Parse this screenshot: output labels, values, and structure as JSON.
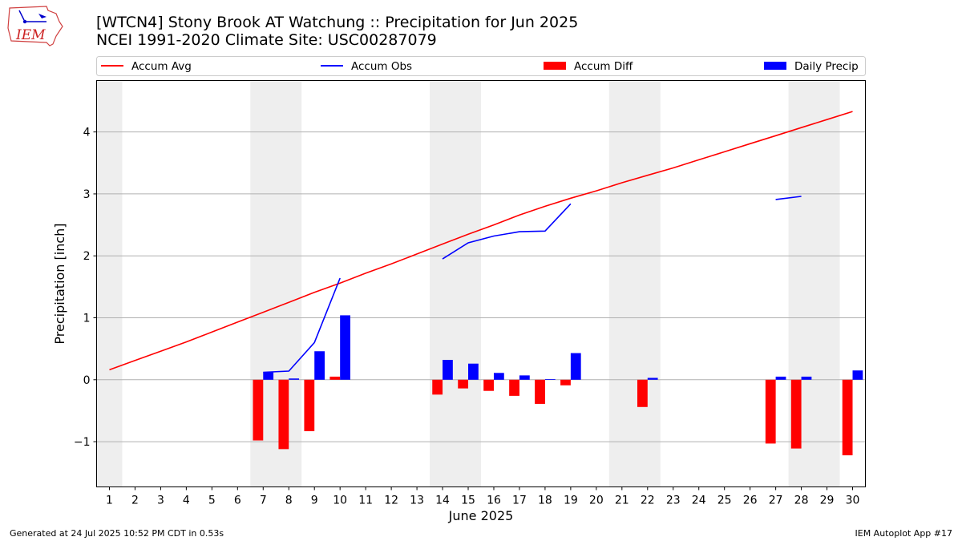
{
  "header": {
    "title_line1": "[WTCN4] Stony Brook  AT Watchung :: Precipitation for Jun 2025",
    "title_line2": "NCEI 1991-2020 Climate Site: USC00287079",
    "logo_text": "IEM"
  },
  "footer": {
    "left": "Generated at 24 Jul 2025 10:52 PM CDT in 0.53s",
    "right": "IEM Autoplot App #17"
  },
  "colors": {
    "accum_avg": "#ff0000",
    "accum_obs": "#0000ff",
    "accum_diff": "#ff0000",
    "daily_precip": "#0000ff",
    "weekend_shade": "#eeeeee",
    "grid": "#b0b0b0"
  },
  "chart_data": {
    "type": "bar+line",
    "xlabel": "June 2025",
    "ylabel": "Precipitation [inch]",
    "xlim": [
      0.5,
      30.5
    ],
    "ylim": [
      -1.73,
      4.83
    ],
    "yticks": [
      -1,
      0,
      1,
      2,
      3,
      4
    ],
    "ytick_labels": [
      "−1",
      "0",
      "1",
      "2",
      "3",
      "4"
    ],
    "xticks": [
      1,
      2,
      3,
      4,
      5,
      6,
      7,
      8,
      9,
      10,
      11,
      12,
      13,
      14,
      15,
      16,
      17,
      18,
      19,
      20,
      21,
      22,
      23,
      24,
      25,
      26,
      27,
      28,
      29,
      30
    ],
    "grid": "horizontal",
    "weekend_shade_ranges": [
      [
        0.5,
        1.5
      ],
      [
        6.5,
        8.5
      ],
      [
        13.5,
        15.5
      ],
      [
        20.5,
        22.5
      ],
      [
        27.5,
        29.5
      ]
    ],
    "legend": {
      "placement": "top",
      "entries": [
        {
          "label": "Accum Avg",
          "kind": "line",
          "color": "#ff0000"
        },
        {
          "label": "Accum Obs",
          "kind": "line",
          "color": "#0000ff"
        },
        {
          "label": "Accum Diff",
          "kind": "bar",
          "color": "#ff0000"
        },
        {
          "label": "Daily Precip",
          "kind": "bar",
          "color": "#0000ff"
        }
      ]
    },
    "series": [
      {
        "name": "Accum Avg",
        "type": "line",
        "color": "#ff0000",
        "x": [
          1,
          2,
          3,
          4,
          5,
          6,
          7,
          8,
          9,
          10,
          11,
          12,
          13,
          14,
          15,
          16,
          17,
          18,
          19,
          20,
          21,
          22,
          23,
          24,
          25,
          26,
          27,
          28,
          29,
          30
        ],
        "values": [
          0.16,
          0.31,
          0.46,
          0.61,
          0.77,
          0.93,
          1.09,
          1.25,
          1.41,
          1.56,
          1.72,
          1.87,
          2.03,
          2.19,
          2.35,
          2.5,
          2.66,
          2.8,
          2.93,
          3.05,
          3.18,
          3.3,
          3.42,
          3.55,
          3.68,
          3.81,
          3.94,
          4.07,
          4.2,
          4.33
        ]
      },
      {
        "name": "Accum Obs",
        "type": "line",
        "color": "#0000ff",
        "segments": [
          {
            "x": [
              7,
              8,
              9,
              10
            ],
            "values": [
              0.12,
              0.14,
              0.6,
              1.64
            ]
          },
          {
            "x": [
              14,
              15,
              16,
              17,
              18,
              19
            ],
            "values": [
              1.95,
              2.21,
              2.32,
              2.39,
              2.4,
              2.84
            ]
          },
          {
            "x": [
              27,
              28
            ],
            "values": [
              2.91,
              2.96
            ]
          }
        ]
      },
      {
        "name": "Accum Diff",
        "type": "bar",
        "color": "#ff0000",
        "x": [
          7,
          8,
          9,
          10,
          14,
          15,
          16,
          17,
          18,
          19,
          22,
          27,
          28,
          30
        ],
        "values": [
          -0.98,
          -1.12,
          -0.83,
          0.05,
          -0.24,
          -0.14,
          -0.18,
          -0.26,
          -0.39,
          -0.09,
          -0.44,
          -1.03,
          -1.11,
          -1.22
        ]
      },
      {
        "name": "Daily Precip",
        "type": "bar",
        "color": "#0000ff",
        "x": [
          7,
          8,
          9,
          10,
          14,
          15,
          16,
          17,
          18,
          19,
          22,
          27,
          28,
          30
        ],
        "values": [
          0.12,
          0.02,
          0.46,
          1.04,
          0.32,
          0.26,
          0.11,
          0.07,
          0.01,
          0.43,
          0.03,
          0.05,
          0.05,
          0.15
        ]
      }
    ]
  }
}
